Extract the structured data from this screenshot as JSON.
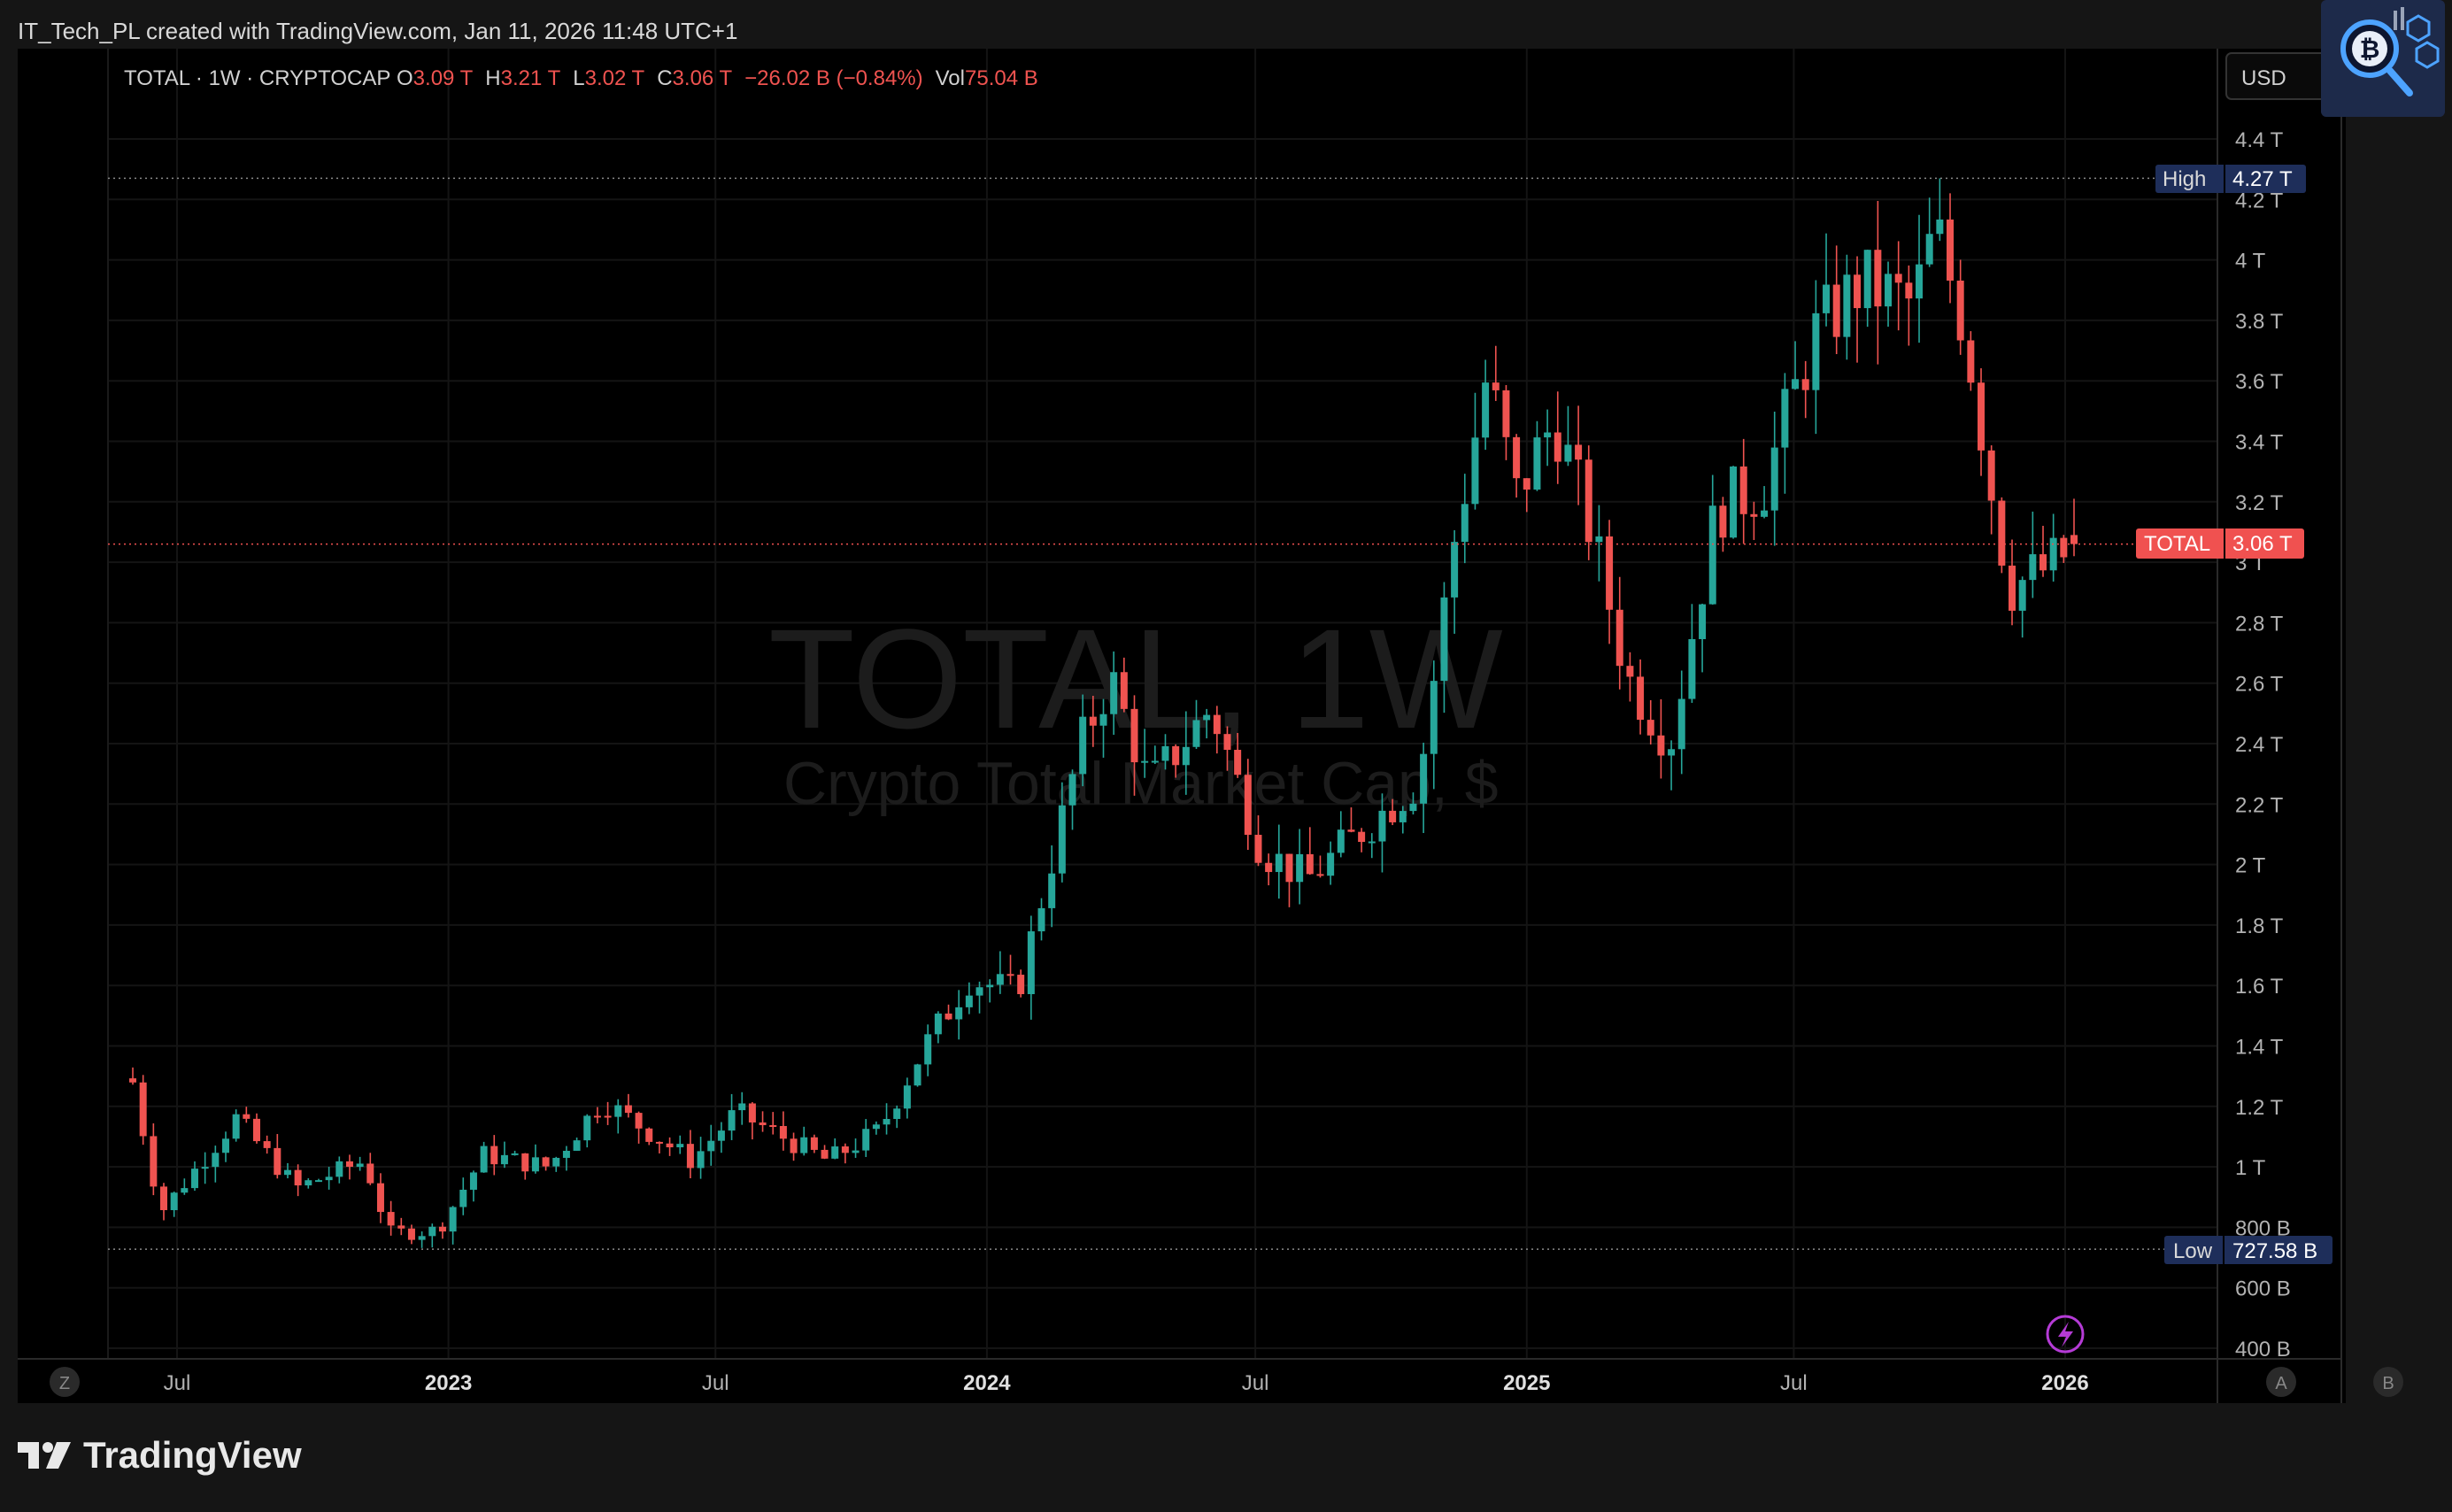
{
  "header": {
    "attribution": "IT_Tech_PL created with TradingView.com, Jan 11, 2026 11:48 UTC+1"
  },
  "legend": {
    "symbol": "TOTAL · 1W · CRYPTOCAP",
    "o_label": "O",
    "o_val": "3.09 T",
    "h_label": "H",
    "h_val": "3.21 T",
    "l_label": "L",
    "l_val": "3.02 T",
    "c_label": "C",
    "c_val": "3.06 T",
    "change": "−26.02 B (−0.84%)",
    "vol_label": "Vol",
    "vol_val": "75.04 B"
  },
  "watermark": {
    "line1": "TOTAL, 1W",
    "line2": "Crypto Total Market Cap, $"
  },
  "currency": "USD",
  "price_tags": {
    "high_label": "High",
    "high_val": "4.27 T",
    "low_label": "Low",
    "low_val": "727.58 B",
    "last_label": "TOTAL",
    "last_val": "3.06 T"
  },
  "y_axis_ticks": [
    "4.4 T",
    "4.2 T",
    "4 T",
    "3.8 T",
    "3.6 T",
    "3.4 T",
    "3.2 T",
    "3 T",
    "2.8 T",
    "2.6 T",
    "2.4 T",
    "2.2 T",
    "2 T",
    "1.8 T",
    "1.6 T",
    "1.4 T",
    "1.2 T",
    "1 T",
    "800 B",
    "600 B",
    "400 B"
  ],
  "x_axis_ticks": [
    "Jul",
    "2023",
    "Jul",
    "2024",
    "Jul",
    "2025",
    "Jul",
    "2026"
  ],
  "buttons": {
    "z": "Z",
    "a": "A",
    "b": "B"
  },
  "footer": {
    "brand": "TradingView"
  },
  "colors": {
    "up": "#26a69a",
    "down": "#ef5350",
    "bg": "#000000",
    "tag_blue": "#1e2e5a",
    "last_tag": "#f05150"
  },
  "chart_data": {
    "type": "candlestick",
    "title": "TOTAL · 1W · CRYPTOCAP",
    "unit": "USD (trillions)",
    "ylim": [
      0.4,
      4.6
    ],
    "high": 4.27,
    "low": 0.72758,
    "last": 3.06,
    "x_tick_dates": [
      "2022-07-01",
      "2023-01-01",
      "2023-07-01",
      "2024-01-01",
      "2024-07-01",
      "2025-01-01",
      "2025-07-01",
      "2026-01-01"
    ],
    "anchors": [
      [
        "2022-06-01",
        1.28
      ],
      [
        "2022-06-20",
        0.85
      ],
      [
        "2022-08-10",
        1.16
      ],
      [
        "2022-09-20",
        0.93
      ],
      [
        "2022-11-05",
        1.02
      ],
      [
        "2022-11-22",
        0.78
      ],
      [
        "2022-12-25",
        0.79
      ],
      [
        "2023-01-25",
        1.04
      ],
      [
        "2023-03-10",
        1.0
      ],
      [
        "2023-04-15",
        1.22
      ],
      [
        "2023-06-15",
        1.02
      ],
      [
        "2023-07-15",
        1.18
      ],
      [
        "2023-09-15",
        1.02
      ],
      [
        "2023-10-20",
        1.12
      ],
      [
        "2023-11-20",
        1.4
      ],
      [
        "2023-12-20",
        1.62
      ],
      [
        "2024-01-22",
        1.58
      ],
      [
        "2024-03-05",
        2.4
      ],
      [
        "2024-03-25",
        2.62
      ],
      [
        "2024-04-20",
        2.26
      ],
      [
        "2024-06-01",
        2.52
      ],
      [
        "2024-07-05",
        2.05
      ],
      [
        "2024-08-05",
        1.95
      ],
      [
        "2024-09-15",
        2.13
      ],
      [
        "2024-10-20",
        2.28
      ],
      [
        "2024-11-12",
        3.05
      ],
      [
        "2024-12-05",
        3.62
      ],
      [
        "2024-12-25",
        3.22
      ],
      [
        "2025-01-20",
        3.48
      ],
      [
        "2025-02-15",
        3.08
      ],
      [
        "2025-03-10",
        2.62
      ],
      [
        "2025-04-08",
        2.4
      ],
      [
        "2025-05-10",
        3.18
      ],
      [
        "2025-06-10",
        3.25
      ],
      [
        "2025-07-15",
        3.75
      ],
      [
        "2025-08-15",
        3.92
      ],
      [
        "2025-09-20",
        3.85
      ],
      [
        "2025-10-05",
        4.1
      ],
      [
        "2025-10-25",
        3.78
      ],
      [
        "2025-11-15",
        3.15
      ],
      [
        "2025-11-25",
        2.92
      ],
      [
        "2025-12-20",
        2.98
      ],
      [
        "2026-01-11",
        3.06
      ]
    ]
  }
}
